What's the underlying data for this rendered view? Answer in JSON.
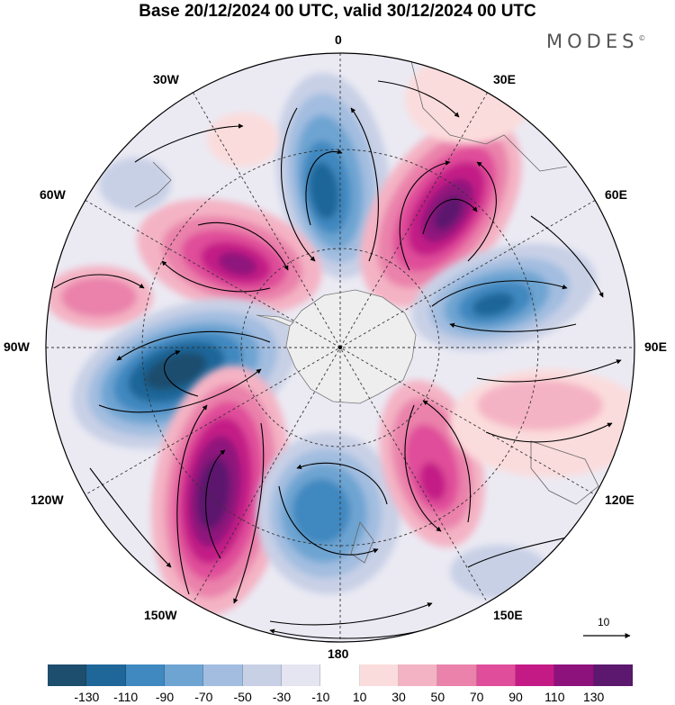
{
  "title": "Base 20/12/2024 00 UTC, valid 30/12/2024 00 UTC",
  "brand": "MODES",
  "brand_mark": "©",
  "longitude_labels": {
    "lon_0": "0",
    "lon_30e": "30E",
    "lon_60e": "60E",
    "lon_90e": "90E",
    "lon_120e": "120E",
    "lon_150e": "150E",
    "lon_180": "180",
    "lon_150w": "150W",
    "lon_120w": "120W",
    "lon_90w": "90W",
    "lon_60w": "60W",
    "lon_30w": "30W"
  },
  "vector_scale_label": "10",
  "colorbar": {
    "colors": [
      "#1d4e6e",
      "#1f6699",
      "#3f88c0",
      "#6ea4d2",
      "#a2bde0",
      "#c8d0e6",
      "#e5e4f1",
      "#ffffff",
      "#fbdcdc",
      "#f4b3c4",
      "#ea82ab",
      "#e04d9a",
      "#c31a86",
      "#8e127c",
      "#5c186e"
    ],
    "ticks": [
      "-130",
      "-110",
      "-90",
      "-70",
      "-50",
      "-30",
      "-10",
      "10",
      "30",
      "50",
      "70",
      "90",
      "110",
      "130"
    ]
  },
  "colors": {
    "antarctica": "#eeeeee",
    "background_field": "#e9e8f2"
  }
}
